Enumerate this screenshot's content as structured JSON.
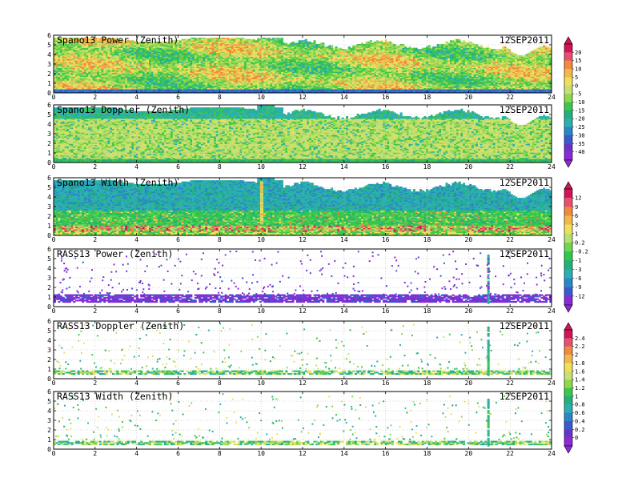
{
  "figure": {
    "date": "12SEP2011"
  },
  "chart_data": [
    {
      "type": "heatmap",
      "title": "Spano13 Power (Zenith)",
      "date_label": "12SEP2011",
      "xlim": [
        0,
        24
      ],
      "ylim": [
        0,
        6
      ],
      "xticks": [
        0,
        2,
        4,
        6,
        8,
        10,
        12,
        14,
        16,
        18,
        20,
        22,
        24
      ],
      "yticks": [
        0,
        1,
        2,
        3,
        4,
        5,
        6
      ],
      "colorbar_group": 0,
      "style": "power"
    },
    {
      "type": "heatmap",
      "title": "Spano13 Doppler (Zenith)",
      "date_label": "12SEP2011",
      "xlim": [
        0,
        24
      ],
      "ylim": [
        0,
        6
      ],
      "xticks": [
        0,
        2,
        4,
        6,
        8,
        10,
        12,
        14,
        16,
        18,
        20,
        22,
        24
      ],
      "yticks": [
        0,
        1,
        2,
        3,
        4,
        5,
        6
      ],
      "colorbar_group": 0,
      "style": "doppler"
    },
    {
      "type": "heatmap",
      "title": "Spano13 Width (Zenith)",
      "date_label": "12SEP2011",
      "xlim": [
        0,
        24
      ],
      "ylim": [
        0,
        6
      ],
      "xticks": [
        0,
        2,
        4,
        6,
        8,
        10,
        12,
        14,
        16,
        18,
        20,
        22,
        24
      ],
      "yticks": [
        0,
        1,
        2,
        3,
        4,
        5,
        6
      ],
      "colorbar_group": 1,
      "style": "width"
    },
    {
      "type": "heatmap",
      "title": "RASS13 Power (Zenith)",
      "date_label": "12SEP2011",
      "xlim": [
        0,
        24
      ],
      "ylim": [
        0,
        6
      ],
      "xticks": [
        0,
        2,
        4,
        6,
        8,
        10,
        12,
        14,
        16,
        18,
        20,
        22,
        24
      ],
      "yticks": [
        0,
        1,
        2,
        3,
        4,
        5,
        6
      ],
      "colorbar_group": 1,
      "style": "rasspower"
    },
    {
      "type": "heatmap",
      "title": "RASS13 Doppler (Zenith)",
      "date_label": "12SEP2011",
      "xlim": [
        0,
        24
      ],
      "ylim": [
        0,
        6
      ],
      "xticks": [
        0,
        2,
        4,
        6,
        8,
        10,
        12,
        14,
        16,
        18,
        20,
        22,
        24
      ],
      "yticks": [
        0,
        1,
        2,
        3,
        4,
        5,
        6
      ],
      "colorbar_group": 2,
      "style": "rassdoppler"
    },
    {
      "type": "heatmap",
      "title": "RASS13 Width (Zenith)",
      "date_label": "12SEP2011",
      "xlim": [
        0,
        24
      ],
      "ylim": [
        0,
        6
      ],
      "xticks": [
        0,
        2,
        4,
        6,
        8,
        10,
        12,
        14,
        16,
        18,
        20,
        22,
        24
      ],
      "yticks": [
        0,
        1,
        2,
        3,
        4,
        5,
        6
      ],
      "colorbar_group": 2,
      "style": "rasswidth"
    }
  ],
  "colorbars": [
    {
      "labels": [
        "20",
        "15",
        "10",
        "5",
        "0",
        "-5",
        "-10",
        "-15",
        "-20",
        "-25",
        "-30",
        "-35",
        "-40"
      ],
      "colors": [
        "#d4145a",
        "#e8506e",
        "#f08a3c",
        "#f2b84a",
        "#efe05a",
        "#c8e070",
        "#8ed84e",
        "#3cc84a",
        "#22b07c",
        "#2ab0b4",
        "#2a86c8",
        "#3a5ad0",
        "#6a34c8",
        "#8a2ad8"
      ]
    },
    {
      "labels": [
        "12",
        "9",
        "6",
        "3",
        "1",
        "0.2",
        "-0.2",
        "-1",
        "-3",
        "-6",
        "-9",
        "-12"
      ],
      "colors": [
        "#d4145a",
        "#e8506e",
        "#f08a3c",
        "#f2b84a",
        "#efe05a",
        "#b8e070",
        "#6cd84e",
        "#2ec84a",
        "#22b07c",
        "#2ab0b4",
        "#2a86c8",
        "#3a5ad0",
        "#8a2ad8"
      ]
    },
    {
      "labels": [
        "2.4",
        "2.2",
        "2",
        "1.8",
        "1.6",
        "1.4",
        "1.2",
        "1",
        "0.8",
        "0.6",
        "0.4",
        "0.2",
        "0"
      ],
      "colors": [
        "#d4145a",
        "#e8506e",
        "#f08a3c",
        "#f2b84a",
        "#efe05a",
        "#c8e070",
        "#8ed84e",
        "#3cc84a",
        "#22b07c",
        "#2ab0b4",
        "#2a86c8",
        "#3a5ad0",
        "#6a34c8",
        "#8a2ad8"
      ]
    }
  ]
}
